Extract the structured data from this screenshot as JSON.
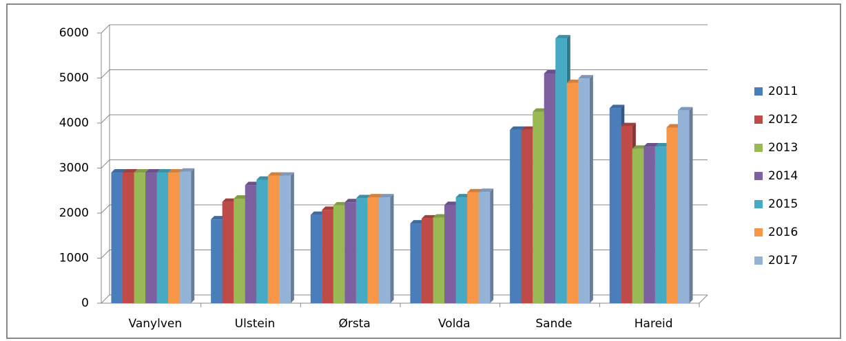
{
  "chart_data": {
    "type": "bar",
    "categories": [
      "Vanylven",
      "Ulstein",
      "Ørsta",
      "Volda",
      "Sande",
      "Hareid"
    ],
    "series": [
      {
        "name": "2011",
        "color": "#4a7ebb",
        "values": [
          2900,
          1860,
          1960,
          1770,
          3850,
          4330
        ]
      },
      {
        "name": "2012",
        "color": "#be4b48",
        "values": [
          2900,
          2250,
          2070,
          1880,
          3850,
          3930
        ]
      },
      {
        "name": "2013",
        "color": "#98b954",
        "values": [
          2900,
          2320,
          2170,
          1900,
          4250,
          3430
        ]
      },
      {
        "name": "2014",
        "color": "#7d60a0",
        "values": [
          2900,
          2620,
          2240,
          2180,
          5100,
          3480
        ]
      },
      {
        "name": "2015",
        "color": "#46aac4",
        "values": [
          2900,
          2740,
          2330,
          2350,
          5880,
          3480
        ]
      },
      {
        "name": "2016",
        "color": "#f79646",
        "values": [
          2900,
          2830,
          2350,
          2460,
          4890,
          3900
        ]
      },
      {
        "name": "2017",
        "color": "#95b3d7",
        "values": [
          2920,
          2830,
          2350,
          2470,
          4990,
          4280
        ]
      }
    ],
    "ylim": [
      0,
      6000
    ],
    "yticks": [
      0,
      1000,
      2000,
      3000,
      4000,
      5000,
      6000
    ],
    "grid": true,
    "legend": "right"
  }
}
